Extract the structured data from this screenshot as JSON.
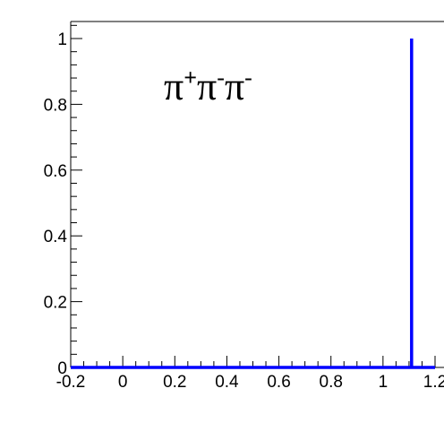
{
  "chart_data": {
    "type": "line",
    "title": {
      "base": "π",
      "parts": [
        {
          "sym": "π",
          "charge": "+"
        },
        {
          "sym": "π",
          "charge": "-"
        },
        {
          "sym": "π",
          "charge": "-"
        }
      ]
    },
    "xlabel": "",
    "ylabel": "",
    "xlim": [
      -0.2,
      1.2
    ],
    "ylim": [
      0,
      1.05
    ],
    "xticks": [
      -0.2,
      0,
      0.2,
      0.4,
      0.6,
      0.8,
      1,
      1.2
    ],
    "xtick_labels": [
      "-0.2",
      "0",
      "0.2",
      "0.4",
      "0.6",
      "0.8",
      "1",
      "1.2"
    ],
    "yticks": [
      0,
      0.2,
      0.4,
      0.6,
      0.8,
      1
    ],
    "ytick_labels": [
      "0",
      "0.2",
      "0.4",
      "0.6",
      "0.8",
      "1"
    ],
    "grid": false,
    "series": [
      {
        "color": "#0000ff",
        "x": [
          -0.2,
          1.11,
          1.11,
          1.11,
          1.2
        ],
        "y": [
          0,
          0,
          1,
          0,
          0
        ]
      }
    ]
  }
}
